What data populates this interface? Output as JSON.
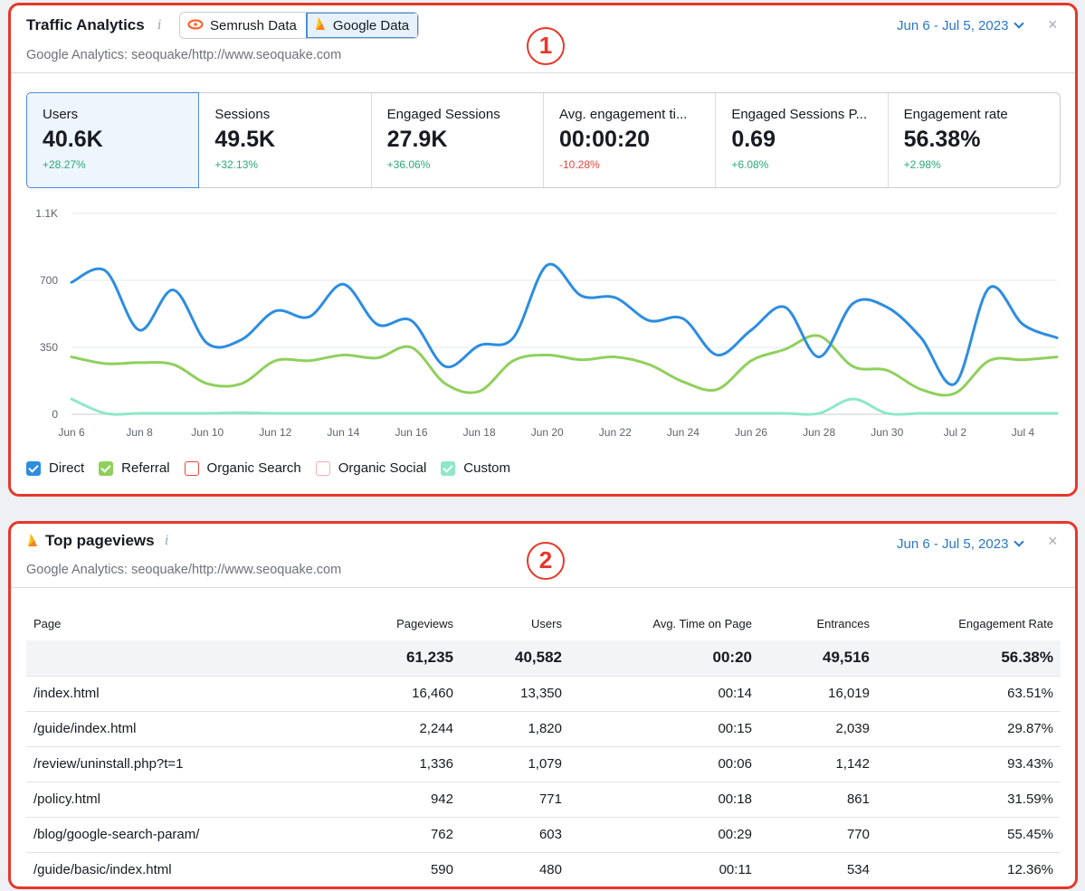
{
  "traffic": {
    "title": "Traffic Analytics",
    "info_icon": "i",
    "toggle": [
      {
        "label": "Semrush Data",
        "icon": "semrush-logo-icon",
        "active": false
      },
      {
        "label": "Google Data",
        "icon": "google-analytics-flame-icon",
        "active": true
      }
    ],
    "subtitle": "Google Analytics: seoquake/http://www.seoquake.com",
    "date_range": "Jun 6 - Jul 5, 2023",
    "close": "×",
    "callout": "1",
    "cards": [
      {
        "label": "Users",
        "value": "40.6K",
        "delta": "+28.27%",
        "trend": "up",
        "active": true
      },
      {
        "label": "Sessions",
        "value": "49.5K",
        "delta": "+32.13%",
        "trend": "up",
        "active": false
      },
      {
        "label": "Engaged Sessions",
        "value": "27.9K",
        "delta": "+36.06%",
        "trend": "up",
        "active": false
      },
      {
        "label": "Avg. engagement ti...",
        "value": "00:00:20",
        "delta": "-10.28%",
        "trend": "down",
        "active": false
      },
      {
        "label": "Engaged Sessions P...",
        "value": "0.69",
        "delta": "+6.08%",
        "trend": "up",
        "active": false
      },
      {
        "label": "Engagement rate",
        "value": "56.38%",
        "delta": "+2.98%",
        "trend": "up",
        "active": false
      }
    ],
    "legend": [
      {
        "label": "Direct",
        "color": "#2d8de0",
        "checked": true
      },
      {
        "label": "Referral",
        "color": "#8fd05c",
        "checked": true
      },
      {
        "label": "Organic Search",
        "color": "#e5453a",
        "checked": false
      },
      {
        "label": "Organic Social",
        "color": "#f0b1b1",
        "checked": false
      },
      {
        "label": "Custom",
        "color": "#8ee8c8",
        "checked": true
      }
    ]
  },
  "chart_data": {
    "type": "line",
    "y_ticks": [
      "1.1K",
      "700",
      "350",
      "0"
    ],
    "y_tick_values": [
      1050,
      700,
      350,
      0
    ],
    "ylim": [
      0,
      1050
    ],
    "x_tick_labels": [
      "Jun 6",
      "Jun 8",
      "Jun 10",
      "Jun 12",
      "Jun 14",
      "Jun 16",
      "Jun 18",
      "Jun 20",
      "Jun 22",
      "Jun 24",
      "Jun 26",
      "Jun 28",
      "Jun 30",
      "Jul 2",
      "Jul 4"
    ],
    "x": [
      "Jun 6",
      "Jun 7",
      "Jun 8",
      "Jun 9",
      "Jun 10",
      "Jun 11",
      "Jun 12",
      "Jun 13",
      "Jun 14",
      "Jun 15",
      "Jun 16",
      "Jun 17",
      "Jun 18",
      "Jun 19",
      "Jun 20",
      "Jun 21",
      "Jun 22",
      "Jun 23",
      "Jun 24",
      "Jun 25",
      "Jun 26",
      "Jun 27",
      "Jun 28",
      "Jun 29",
      "Jun 30",
      "Jul 1",
      "Jul 2",
      "Jul 3",
      "Jul 4",
      "Jul 5"
    ],
    "grid": true,
    "series": [
      {
        "name": "Direct",
        "color": "#2d8de0",
        "values": [
          690,
          750,
          440,
          650,
          370,
          390,
          540,
          510,
          680,
          470,
          490,
          250,
          360,
          400,
          780,
          620,
          610,
          490,
          500,
          310,
          440,
          560,
          300,
          580,
          560,
          400,
          160,
          660,
          470,
          400
        ]
      },
      {
        "name": "Referral",
        "color": "#8fd05c",
        "values": [
          300,
          265,
          270,
          260,
          160,
          160,
          280,
          280,
          310,
          295,
          350,
          160,
          120,
          280,
          310,
          285,
          300,
          260,
          170,
          130,
          280,
          340,
          410,
          250,
          230,
          130,
          110,
          280,
          285,
          300
        ]
      },
      {
        "name": "Custom",
        "color": "#8ee8c8",
        "values": [
          80,
          5,
          5,
          5,
          5,
          8,
          5,
          5,
          5,
          5,
          5,
          5,
          5,
          5,
          5,
          5,
          5,
          5,
          5,
          5,
          5,
          5,
          5,
          80,
          5,
          5,
          5,
          5,
          5,
          5
        ]
      }
    ]
  },
  "pageviews": {
    "title": "Top pageviews",
    "info_icon": "i",
    "subtitle": "Google Analytics: seoquake/http://www.seoquake.com",
    "date_range": "Jun 6 - Jul 5, 2023",
    "close": "×",
    "callout": "2",
    "columns": [
      "Page",
      "Pageviews",
      "Users",
      "Avg. Time on Page",
      "Entrances",
      "Engagement Rate"
    ],
    "totals": [
      "",
      "61,235",
      "40,582",
      "00:20",
      "49,516",
      "56.38%"
    ],
    "rows": [
      [
        "/index.html",
        "16,460",
        "13,350",
        "00:14",
        "16,019",
        "63.51%"
      ],
      [
        "/guide/index.html",
        "2,244",
        "1,820",
        "00:15",
        "2,039",
        "29.87%"
      ],
      [
        "/review/uninstall.php?t=1",
        "1,336",
        "1,079",
        "00:06",
        "1,142",
        "93.43%"
      ],
      [
        "/policy.html",
        "942",
        "771",
        "00:18",
        "861",
        "31.59%"
      ],
      [
        "/blog/google-search-param/",
        "762",
        "603",
        "00:29",
        "770",
        "55.45%"
      ],
      [
        "/guide/basic/index.html",
        "590",
        "480",
        "00:11",
        "534",
        "12.36%"
      ]
    ]
  }
}
